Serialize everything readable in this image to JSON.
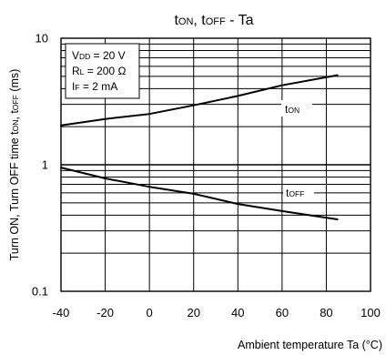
{
  "chart_data": {
    "type": "line",
    "title": {
      "main": "t",
      "on": "ON",
      "sep": ", t",
      "off": "OFF",
      "tail": " - Ta"
    },
    "xlabel": "Ambient temperature Ta (°C)",
    "ylabel": {
      "p1": "Turn ON, Turn OFF time t",
      "s1": "ON",
      "p2": ", t",
      "s2": "OFF",
      "p3": " (ms)"
    },
    "x_ticks": [
      -40,
      -20,
      0,
      20,
      40,
      60,
      80,
      100
    ],
    "x_tick_labels": [
      "-40",
      "-20",
      "0",
      "20",
      "40",
      "60",
      "80",
      "100"
    ],
    "y_ticks": [
      0.1,
      1,
      10
    ],
    "y_tick_labels": [
      "0.1",
      "1",
      "10"
    ],
    "xlim": [
      -40,
      100
    ],
    "ylim": [
      0.1,
      10
    ],
    "y_scale": "log",
    "grid": true,
    "conditions": [
      {
        "main": "V",
        "sub": "DD",
        "rest": " = 20 V"
      },
      {
        "main": "R",
        "sub": "L",
        "rest": " = 200 Ω"
      },
      {
        "main": "I",
        "sub": "F",
        "rest": " = 2 mA"
      }
    ],
    "series": [
      {
        "label": {
          "main": "t",
          "sub": "ON"
        },
        "x": [
          -40,
          -20,
          0,
          20,
          40,
          60,
          85
        ],
        "y": [
          2.05,
          2.3,
          2.52,
          2.95,
          3.5,
          4.25,
          5.1
        ]
      },
      {
        "label": {
          "main": "t",
          "sub": "OFF"
        },
        "x": [
          -40,
          -20,
          0,
          20,
          40,
          60,
          85
        ],
        "y": [
          0.95,
          0.78,
          0.67,
          0.59,
          0.49,
          0.43,
          0.37
        ]
      }
    ]
  }
}
